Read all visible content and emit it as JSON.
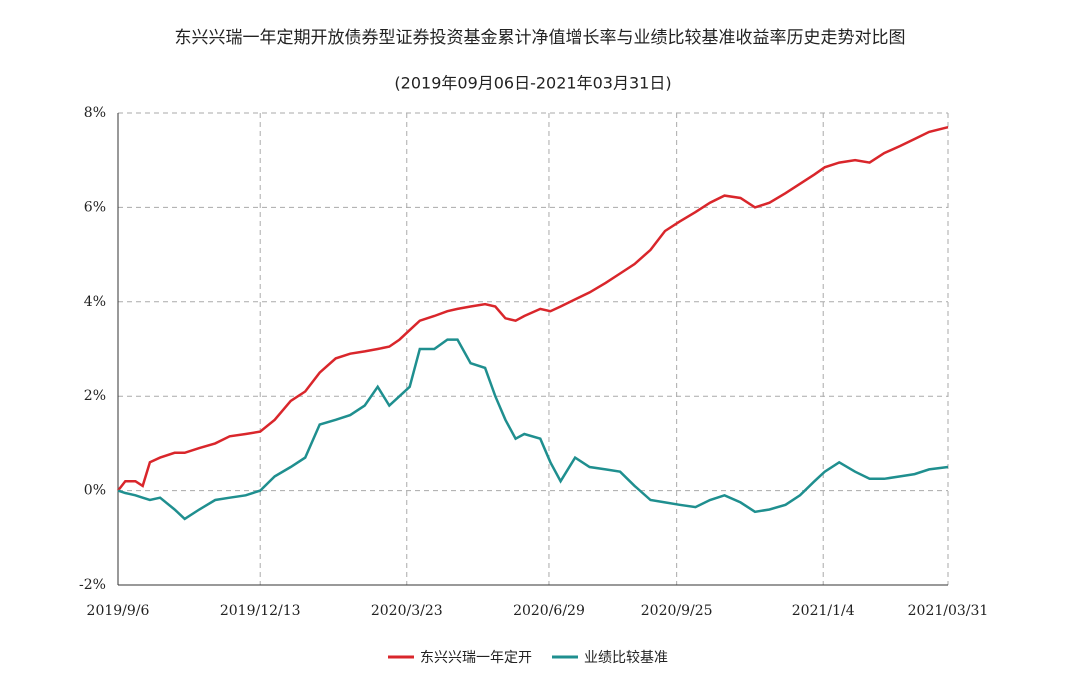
{
  "chart_data": {
    "type": "line",
    "title": "东兴兴瑞一年定期开放债券型证券投资基金累计净值增长率与业绩比较基准收益率历史走势对比图",
    "subtitle": "(2019年09月06日-2021年03月31日)",
    "x": [
      "2019-09-06",
      "2019-09-11",
      "2019-09-18",
      "2019-09-23",
      "2019-09-28",
      "2019-10-05",
      "2019-10-15",
      "2019-10-22",
      "2019-11-01",
      "2019-11-12",
      "2019-11-22",
      "2019-12-03",
      "2019-12-13",
      "2019-12-23",
      "2020-01-03",
      "2020-01-13",
      "2020-01-23",
      "2020-02-03",
      "2020-02-13",
      "2020-02-23",
      "2020-03-03",
      "2020-03-11",
      "2020-03-18",
      "2020-03-25",
      "2020-04-01",
      "2020-04-11",
      "2020-04-20",
      "2020-04-27",
      "2020-05-06",
      "2020-05-16",
      "2020-05-23",
      "2020-05-30",
      "2020-06-06",
      "2020-06-12",
      "2020-06-23",
      "2020-06-30",
      "2020-07-07",
      "2020-07-17",
      "2020-07-27",
      "2020-08-07",
      "2020-08-17",
      "2020-08-27",
      "2020-09-07",
      "2020-09-17",
      "2020-09-27",
      "2020-10-08",
      "2020-10-18",
      "2020-10-28",
      "2020-11-08",
      "2020-11-18",
      "2020-11-28",
      "2020-12-09",
      "2020-12-19",
      "2020-12-29",
      "2021-01-05",
      "2021-01-15",
      "2021-01-26",
      "2021-02-05",
      "2021-02-15",
      "2021-02-26",
      "2021-03-08",
      "2021-03-18",
      "2021-03-31"
    ],
    "series": [
      {
        "name": "东兴兴瑞一年定开",
        "color": "#d9262b",
        "values": [
          0,
          0.2,
          0.2,
          0.1,
          0.6,
          0.7,
          0.8,
          0.8,
          0.9,
          1.0,
          1.15,
          1.2,
          1.25,
          1.5,
          1.9,
          2.1,
          2.5,
          2.8,
          2.9,
          2.95,
          3.0,
          3.05,
          3.2,
          3.4,
          3.6,
          3.7,
          3.8,
          3.85,
          3.9,
          3.95,
          3.9,
          3.65,
          3.6,
          3.7,
          3.85,
          3.8,
          3.9,
          4.05,
          4.2,
          4.4,
          4.6,
          4.8,
          5.1,
          5.5,
          5.7,
          5.9,
          6.1,
          6.25,
          6.2,
          6.0,
          6.1,
          6.3,
          6.5,
          6.7,
          6.85,
          6.95,
          7.0,
          6.95,
          7.15,
          7.3,
          7.45,
          7.6,
          7.7
        ]
      },
      {
        "name": "业绩比较基准",
        "color": "#1f8f8f",
        "values": [
          0,
          -0.05,
          -0.1,
          -0.15,
          -0.2,
          -0.15,
          -0.4,
          -0.6,
          -0.4,
          -0.2,
          -0.15,
          -0.1,
          0,
          0.3,
          0.5,
          0.7,
          1.4,
          1.5,
          1.6,
          1.8,
          2.2,
          1.8,
          2.0,
          2.2,
          3.0,
          3.0,
          3.2,
          3.2,
          2.7,
          2.6,
          2.0,
          1.5,
          1.1,
          1.2,
          1.1,
          0.6,
          0.2,
          0.7,
          0.5,
          0.45,
          0.4,
          0.1,
          -0.2,
          -0.25,
          -0.3,
          -0.35,
          -0.2,
          -0.1,
          -0.25,
          -0.45,
          -0.4,
          -0.3,
          -0.1,
          0.2,
          0.4,
          0.6,
          0.4,
          0.25,
          0.25,
          0.3,
          0.35,
          0.45,
          0.5
        ]
      }
    ],
    "xlim": [
      "2019-09-06",
      "2021-03-31"
    ],
    "xticks": [
      {
        "value": "2019-09-06",
        "label": "2019/9/6"
      },
      {
        "value": "2019-12-13",
        "label": "2019/12/13"
      },
      {
        "value": "2020-03-23",
        "label": "2020/3/23"
      },
      {
        "value": "2020-06-29",
        "label": "2020/6/29"
      },
      {
        "value": "2020-09-25",
        "label": "2020/9/25"
      },
      {
        "value": "2021-01-04",
        "label": "2021/1/4"
      },
      {
        "value": "2021-03-31",
        "label": "2021/03/31"
      }
    ],
    "ylim": [
      -2,
      8
    ],
    "yticks": [
      {
        "value": -2,
        "label": "-2%"
      },
      {
        "value": 0,
        "label": "0%"
      },
      {
        "value": 2,
        "label": "2%"
      },
      {
        "value": 4,
        "label": "4%"
      },
      {
        "value": 6,
        "label": "6%"
      },
      {
        "value": 8,
        "label": "8%"
      }
    ],
    "grid": true
  }
}
